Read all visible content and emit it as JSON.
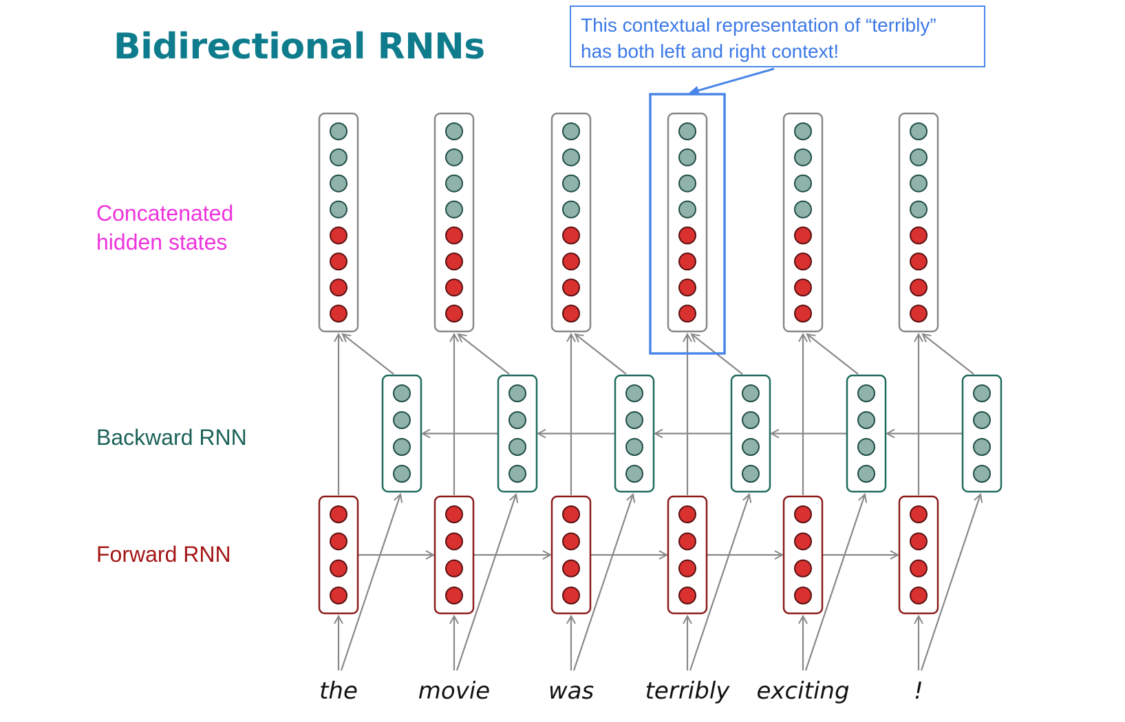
{
  "title": "Bidirectional RNNs",
  "callout": {
    "line1": "This contextual representation of “terribly”",
    "line2": "has both left and right context!",
    "border_color": "#4a86e8"
  },
  "labels": {
    "concat_line1": "Concatenated",
    "concat_line2": "hidden states",
    "backward": "Backward RNN",
    "forward": "Forward RNN"
  },
  "words": [
    "the",
    "movie",
    "was",
    "terribly",
    "exciting",
    "!"
  ],
  "highlighted_word": "terribly",
  "colors": {
    "title": "#0e7c8c",
    "concat_label": "#ee33dd",
    "backward_label": "#1a6158",
    "forward_label": "#a31515",
    "teal_node": "#8fb3aa",
    "red_node": "#d93030",
    "arrow": "#888888",
    "highlight": "#4a86e8"
  },
  "nodes_per_state": {
    "concat_teal": 4,
    "concat_red": 4,
    "backward": 4,
    "forward": 4
  }
}
